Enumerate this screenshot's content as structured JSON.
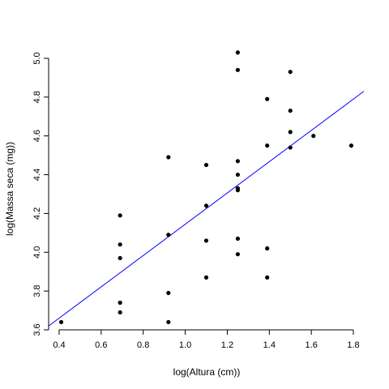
{
  "chart_data": {
    "type": "scatter",
    "xlabel": "log(Altura (cm))",
    "ylabel": "log(Massa seca (mg))",
    "xlim": [
      0.35,
      1.85
    ],
    "ylim": [
      3.6,
      5.05
    ],
    "xticks": [
      "0.4",
      "0.6",
      "0.8",
      "1.0",
      "1.2",
      "1.4",
      "1.6",
      "1.8"
    ],
    "yticks": [
      "3.6",
      "3.8",
      "4.0",
      "4.2",
      "4.4",
      "4.6",
      "4.8",
      "5.0"
    ],
    "grid": false,
    "point_color": "#000000",
    "line_color": "#0000ff",
    "points": [
      {
        "x": 0.41,
        "y": 3.64
      },
      {
        "x": 0.69,
        "y": 3.69
      },
      {
        "x": 0.69,
        "y": 3.74
      },
      {
        "x": 0.69,
        "y": 3.97
      },
      {
        "x": 0.69,
        "y": 4.04
      },
      {
        "x": 0.69,
        "y": 4.19
      },
      {
        "x": 0.92,
        "y": 3.64
      },
      {
        "x": 0.92,
        "y": 3.79
      },
      {
        "x": 0.92,
        "y": 4.09
      },
      {
        "x": 0.92,
        "y": 4.49
      },
      {
        "x": 1.1,
        "y": 3.87
      },
      {
        "x": 1.1,
        "y": 4.06
      },
      {
        "x": 1.1,
        "y": 4.24
      },
      {
        "x": 1.1,
        "y": 4.45
      },
      {
        "x": 1.25,
        "y": 3.99
      },
      {
        "x": 1.25,
        "y": 4.07
      },
      {
        "x": 1.25,
        "y": 4.32
      },
      {
        "x": 1.25,
        "y": 4.33
      },
      {
        "x": 1.25,
        "y": 4.4
      },
      {
        "x": 1.25,
        "y": 4.47
      },
      {
        "x": 1.25,
        "y": 4.94
      },
      {
        "x": 1.25,
        "y": 5.03
      },
      {
        "x": 1.39,
        "y": 3.87
      },
      {
        "x": 1.39,
        "y": 4.02
      },
      {
        "x": 1.39,
        "y": 4.55
      },
      {
        "x": 1.39,
        "y": 4.79
      },
      {
        "x": 1.5,
        "y": 4.54
      },
      {
        "x": 1.5,
        "y": 4.62
      },
      {
        "x": 1.5,
        "y": 4.73
      },
      {
        "x": 1.5,
        "y": 4.93
      },
      {
        "x": 1.61,
        "y": 4.6
      },
      {
        "x": 1.79,
        "y": 4.55
      }
    ],
    "regression_line": {
      "x": [
        0.35,
        1.85
      ],
      "y": [
        3.62,
        4.83
      ]
    }
  }
}
